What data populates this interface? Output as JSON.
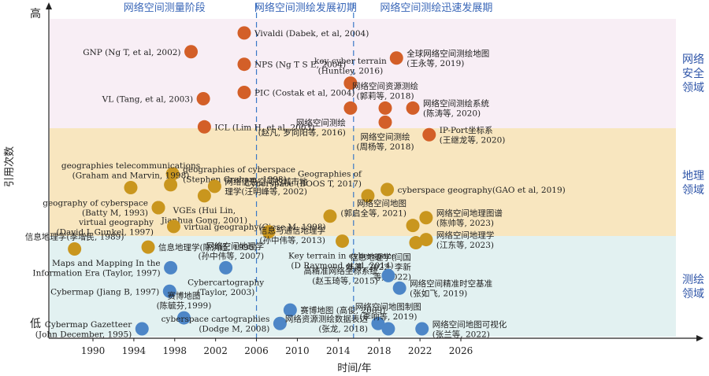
{
  "chart_data": {
    "type": "scatter",
    "xlabel": "时间/年",
    "ylabel": "引用次数",
    "y_high_label": "高",
    "y_low_label": "低",
    "xlim": [
      1987.5,
      2032
    ],
    "x_ticks": [
      1990,
      1994,
      1998,
      2002,
      2006,
      2010,
      2014,
      2018,
      2022,
      2026
    ],
    "phase_dividers": [
      2006,
      2015.5
    ],
    "phases": [
      {
        "label": "网络空间测量阶段",
        "x": 1997
      },
      {
        "label": "网络空间测绘发展初期",
        "x": 2010.8
      },
      {
        "label": "网络空间测绘迅速发展期",
        "x": 2023.6
      }
    ],
    "bands": [
      {
        "name": "网络安全领域",
        "lines": [
          "网络",
          "安全",
          "领域"
        ],
        "color": "#f8eef5",
        "point_color": "#d35f28"
      },
      {
        "name": "地理领域",
        "lines": [
          "地理",
          "领域"
        ],
        "color": "#f8e6bf",
        "point_color": "#c9961e"
      },
      {
        "name": "测绘领域",
        "lines": [
          "测绘",
          "领域"
        ],
        "color": "#e2f1f1",
        "point_color": "#4d86c7"
      }
    ],
    "series": [
      {
        "name": "网络安全领域",
        "points": [
          {
            "x": 2004.8,
            "y": 0.95,
            "label": [
              "Vivaldi (Dabek, et al, 2004)"
            ],
            "anchor": "right"
          },
          {
            "x": 1999.6,
            "y": 0.89,
            "label": [
              "GNP (Ng T, et al, 2002)"
            ],
            "anchor": "left"
          },
          {
            "x": 2004.8,
            "y": 0.85,
            "label": [
              "NPS (Ng T S E, 2004)"
            ],
            "anchor": "right"
          },
          {
            "x": 2004.8,
            "y": 0.76,
            "label": [
              "PIC (Costak et al, 2004)"
            ],
            "anchor": "right"
          },
          {
            "x": 2000.8,
            "y": 0.74,
            "label": [
              "VL (Tang, et al, 2003)"
            ],
            "anchor": "left"
          },
          {
            "x": 2000.9,
            "y": 0.65,
            "label": [
              "ICL (Lim H, et al, 2003)"
            ],
            "anchor": "right"
          },
          {
            "x": 2015.2,
            "y": 0.79,
            "label": [
              "key cyber terrain",
              "(Huntley, 2016)"
            ],
            "anchor": "above"
          },
          {
            "x": 2015.2,
            "y": 0.71,
            "label": [
              "网络空间测绘",
              "(赵凡, 罗向阳等, 2016)"
            ],
            "anchor": "below-left"
          },
          {
            "x": 2019.7,
            "y": 0.87,
            "label": [
              "全球网络空间测绘地图",
              "(王永等, 2019)"
            ],
            "anchor": "right"
          },
          {
            "x": 2018.6,
            "y": 0.71,
            "label": [
              "网络空间资源测绘",
              "(郭莉等, 2018)"
            ],
            "anchor": "above"
          },
          {
            "x": 2018.6,
            "y": 0.665,
            "label": [
              "网络空间测绘",
              "(周杨等, 2018)"
            ],
            "anchor": "below"
          },
          {
            "x": 2021.3,
            "y": 0.71,
            "label": [
              "网络空间测绘系统",
              "(陈涛等, 2020)"
            ],
            "anchor": "right"
          },
          {
            "x": 2022.9,
            "y": 0.625,
            "label": [
              "IP-Port坐标系",
              "(王继龙等, 2020)"
            ],
            "anchor": "right"
          }
        ]
      },
      {
        "name": "地理领域",
        "points": [
          {
            "x": 1997.8,
            "y": 0.5,
            "label": [
              "geographies of cyberspace",
              "(Stephen Graham, 1998)"
            ],
            "anchor": "right"
          },
          {
            "x": 1993.7,
            "y": 0.456,
            "label": [
              "geographies telecommunications",
              "(Graham and Marvin, 1998)"
            ],
            "anchor": "above"
          },
          {
            "x": 1997.6,
            "y": 0.465,
            "label": [],
            "anchor": "none"
          },
          {
            "x": 2001.9,
            "y": 0.46,
            "label": [
              "网络信息空间的城市地",
              "理学(汪明峰等, 2002)"
            ],
            "anchor": "right"
          },
          {
            "x": 2000.9,
            "y": 0.43,
            "label": [
              "VGEs (Hui Lin,",
              "Jianhua Gong, 2001)"
            ],
            "anchor": "below"
          },
          {
            "x": 1996.4,
            "y": 0.392,
            "label": [
              "geography of cyberspace",
              "(Batty M, 1993)"
            ],
            "anchor": "left"
          },
          {
            "x": 1996.4,
            "y": 0.392,
            "label": [
              "virtual geography",
              "(David J. Gunkel, 1997)"
            ],
            "anchor": "below-left"
          },
          {
            "x": 1997.9,
            "y": 0.332,
            "label": [
              "virtual geography(Giese M, 1998)"
            ],
            "anchor": "right"
          },
          {
            "x": 2007.2,
            "y": 0.315,
            "label": [
              "网络空间地理学",
              "(孙中伟等, 2007)"
            ],
            "anchor": "below-left"
          },
          {
            "x": 1988.2,
            "y": 0.26,
            "label": [
              "信息地理学(季增民, 1989)"
            ],
            "anchor": "above"
          },
          {
            "x": 1995.4,
            "y": 0.266,
            "label": [
              "信息地理学(陈洪经, 1995)"
            ],
            "anchor": "right"
          },
          {
            "x": 2013.2,
            "y": 0.365,
            "label": [
              "信息与通信地理学",
              "(孙中伟等, 2013)"
            ],
            "anchor": "below-left"
          },
          {
            "x": 2014.4,
            "y": 0.285,
            "label": [
              "Key terrain in cyberspace",
              "(D Raymond et al, 2014)"
            ],
            "anchor": "below"
          },
          {
            "x": 2016.9,
            "y": 0.43,
            "label": [
              "Geographies of",
              "Cyberspace (BOOS T, 2017)"
            ],
            "anchor": "above-left"
          },
          {
            "x": 2018.8,
            "y": 0.45,
            "label": [
              "cyberspace geography(GAO  et al, 2019)"
            ],
            "anchor": "right"
          },
          {
            "x": 2021.3,
            "y": 0.335,
            "label": [
              "网络空间地图",
              "(郭启全等, 2021)"
            ],
            "anchor": "above-left"
          },
          {
            "x": 2022.6,
            "y": 0.36,
            "label": [
              "网络空间地理图谱",
              "(陈帅等, 2023)"
            ],
            "anchor": "right"
          },
          {
            "x": 2021.6,
            "y": 0.28,
            "label": [
              "信息地理学(闫国",
              "年等, 2022; 李新",
              "等, 2022)"
            ],
            "anchor": "below-left"
          },
          {
            "x": 2022.6,
            "y": 0.29,
            "label": [
              "网络空间地理学",
              "(江东等, 2023)"
            ],
            "anchor": "right"
          }
        ]
      },
      {
        "name": "测绘领域",
        "points": [
          {
            "x": 1997.6,
            "y": 0.2,
            "label": [
              "Maps and Mapping In the",
              "Information Era (Taylor, 1997)"
            ],
            "anchor": "left"
          },
          {
            "x": 2003.0,
            "y": 0.2,
            "label": [
              "Cybercartography",
              "(Taylor, 2003)"
            ],
            "anchor": "below"
          },
          {
            "x": 1997.5,
            "y": 0.125,
            "label": [
              "Cybermap (Jiang B, 1997)"
            ],
            "anchor": "left"
          },
          {
            "x": 1998.9,
            "y": 0.04,
            "label": [
              "赛博地图",
              "(陈毓芬,1999)"
            ],
            "anchor": "above"
          },
          {
            "x": 1994.8,
            "y": 0.005,
            "label": [
              "Cybermap Gazetteer",
              "(John December, 1995)"
            ],
            "anchor": "left"
          },
          {
            "x": 2009.3,
            "y": 0.065,
            "label": [
              "赛博地图 (高俊, 2009)"
            ],
            "anchor": "right"
          },
          {
            "x": 2008.3,
            "y": 0.022,
            "label": [
              "cyberspace cartographies",
              "(Dodge M, 2008)"
            ],
            "anchor": "left"
          },
          {
            "x": 2018.9,
            "y": 0.175,
            "label": [
              "高精准网络坐标系统",
              "(赵玉琦等, 2015)"
            ],
            "anchor": "left"
          },
          {
            "x": 2020.0,
            "y": 0.135,
            "label": [
              "网络空间精准时空基准",
              "(张如飞, 2019)"
            ],
            "anchor": "right"
          },
          {
            "x": 2017.9,
            "y": 0.022,
            "label": [
              "网络资源测绘数据表达",
              "(张龙, 2018)"
            ],
            "anchor": "left"
          },
          {
            "x": 2018.9,
            "y": 0.005,
            "label": [
              "网络空间地图制图",
              "(李响等, 2019)"
            ],
            "anchor": "above"
          },
          {
            "x": 2022.2,
            "y": 0.005,
            "label": [
              "网络空间地图可视化",
              "(张兰等, 2022)"
            ],
            "anchor": "right"
          }
        ]
      }
    ]
  }
}
